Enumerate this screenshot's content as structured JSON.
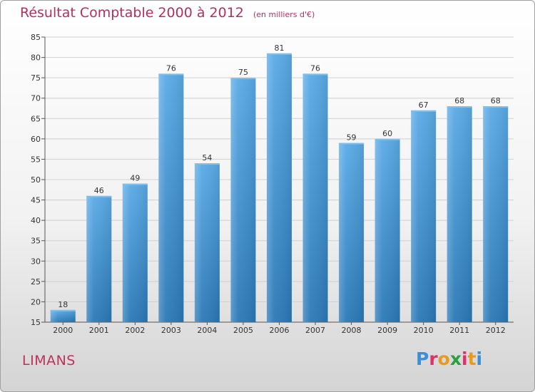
{
  "header": {
    "title": "Résultat Comptable 2000 à 2012",
    "subtitle": "(en milliers d'€)"
  },
  "footer": {
    "commune": "LIMANS",
    "logo_letters": [
      "P",
      "r",
      "o",
      "x",
      "i",
      "t",
      "i"
    ],
    "logo_colors": [
      "#3a8fd8",
      "#e0306a",
      "#e89a20",
      "#2ca03c",
      "#e0306a",
      "#e89a20",
      "#3a8fd8"
    ]
  },
  "chart_data": {
    "type": "bar",
    "title": "Résultat Comptable 2000 à 2012",
    "xlabel": "",
    "ylabel": "",
    "categories": [
      "2000",
      "2001",
      "2002",
      "2003",
      "2004",
      "2005",
      "2006",
      "2007",
      "2008",
      "2009",
      "2010",
      "2011",
      "2012"
    ],
    "values": [
      18,
      46,
      49,
      76,
      54,
      75,
      81,
      76,
      59,
      60,
      67,
      68,
      68
    ],
    "ylim": [
      15,
      85
    ],
    "yticks": [
      15,
      20,
      25,
      30,
      35,
      40,
      45,
      50,
      55,
      60,
      65,
      70,
      75,
      80,
      85
    ],
    "grid": true,
    "colors": {
      "bar_top": "#5aaae6",
      "bar_bottom": "#2a78b6",
      "grid": "#d0d0d0",
      "axis": "#555555"
    }
  }
}
